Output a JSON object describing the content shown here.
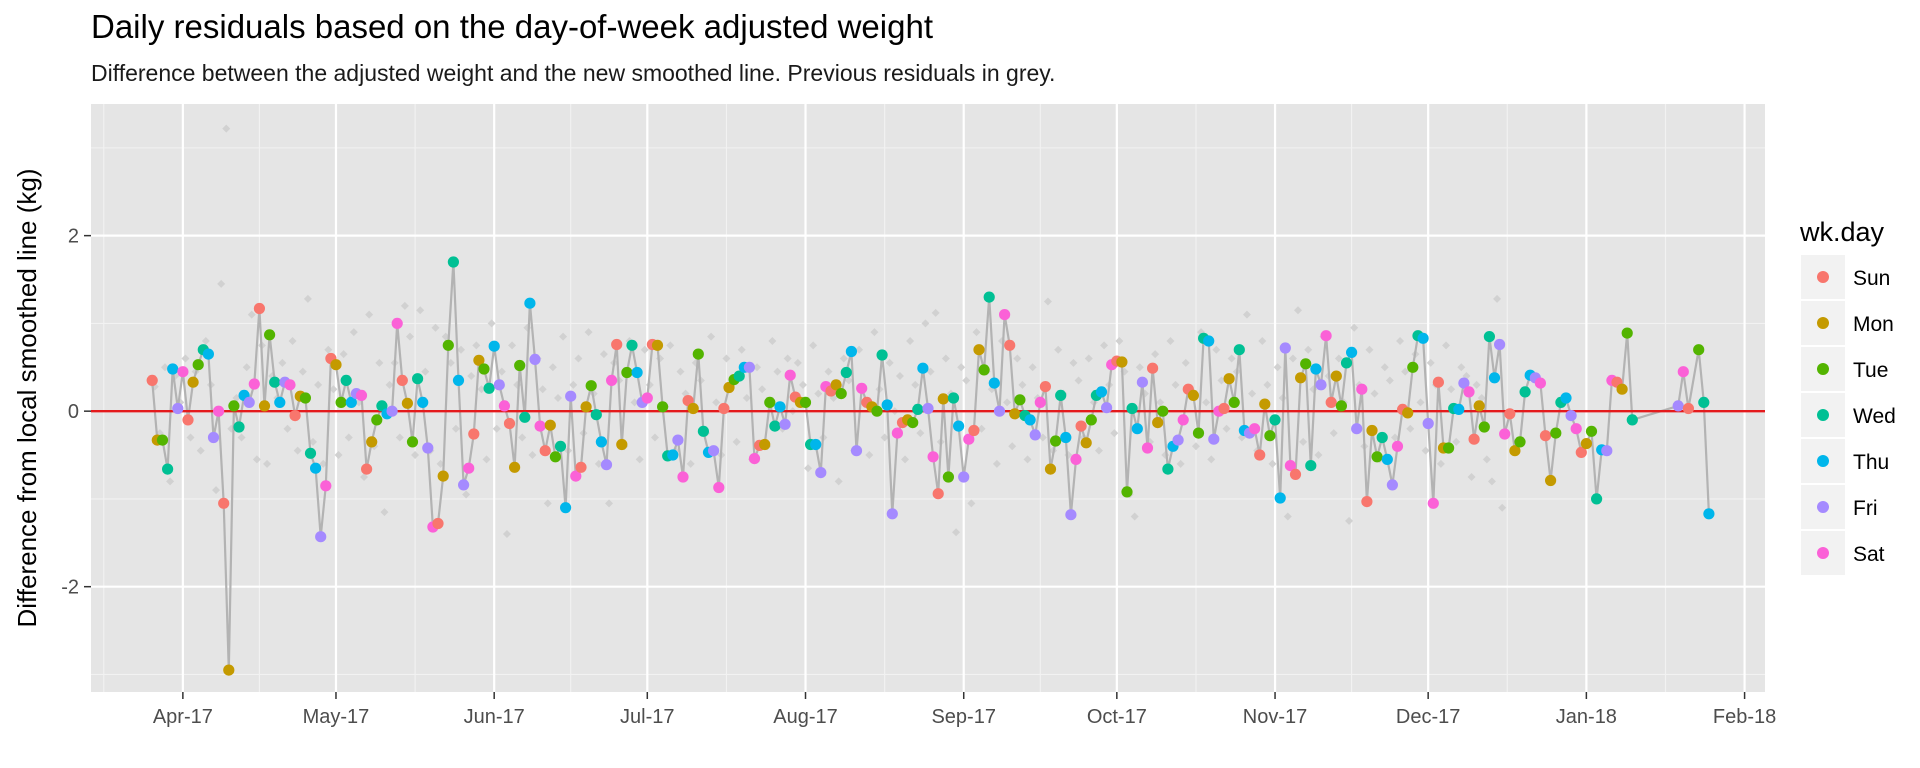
{
  "chart_data": {
    "type": "scatter",
    "title": "Daily residuals based on the day-of-week adjusted weight",
    "subtitle": "Difference between the adjusted weight and the new smoothed line. Previous residuals in grey.",
    "xlabel": "",
    "ylabel": "Difference from local smoothed line (kg)",
    "x_range": [
      "2017-03-14",
      "2018-02-05"
    ],
    "ylim": [
      -3.2,
      3.5
    ],
    "x_ticks": [
      "Apr-17",
      "May-17",
      "Jun-17",
      "Jul-17",
      "Aug-17",
      "Sep-17",
      "Oct-17",
      "Nov-17",
      "Dec-17",
      "Jan-18",
      "Feb-18"
    ],
    "x_tick_dates": [
      "2017-04-01",
      "2017-05-01",
      "2017-06-01",
      "2017-07-01",
      "2017-08-01",
      "2017-09-01",
      "2017-10-01",
      "2017-11-01",
      "2017-12-01",
      "2018-01-01",
      "2018-02-01"
    ],
    "y_ticks": [
      -2,
      0,
      2
    ],
    "y_tick_labels": [
      "-2",
      "0",
      "2"
    ],
    "reference_line": {
      "y": 0,
      "color": "#e41a1c"
    },
    "grid": true,
    "background": "#e5e5e5",
    "connecting_line_color": "#b3b3b3",
    "previous_residuals_color": "#d1d1d1",
    "legend": {
      "title": "wk.day",
      "position": "right",
      "entries": [
        {
          "label": "Sun",
          "color": "#F8766D"
        },
        {
          "label": "Mon",
          "color": "#C49A00"
        },
        {
          "label": "Tue",
          "color": "#53B400"
        },
        {
          "label": "Wed",
          "color": "#00C094"
        },
        {
          "label": "Thu",
          "color": "#00B6EB"
        },
        {
          "label": "Fri",
          "color": "#A58AFF"
        },
        {
          "label": "Sat",
          "color": "#FB61D7"
        }
      ]
    },
    "start_date": "2017-03-26",
    "residuals": [
      0.35,
      -0.33,
      -0.33,
      -0.66,
      0.48,
      0.03,
      0.45,
      -0.1,
      0.33,
      0.53,
      0.7,
      0.65,
      -0.3,
      0.0,
      -1.05,
      -2.95,
      0.06,
      -0.18,
      0.18,
      0.1,
      0.31,
      1.17,
      0.06,
      0.87,
      0.33,
      0.1,
      0.33,
      0.3,
      -0.05,
      0.17,
      0.15,
      -0.48,
      -0.65,
      -1.43,
      -0.85,
      0.6,
      0.53,
      0.1,
      0.35,
      0.1,
      0.2,
      0.18,
      -0.66,
      -0.35,
      -0.1,
      0.06,
      -0.03,
      0.0,
      1.0,
      0.35,
      0.09,
      -0.35,
      0.37,
      0.1,
      -0.42,
      -1.32,
      -1.28,
      -0.74,
      0.75,
      1.7,
      0.35,
      -0.84,
      -0.65,
      -0.26,
      0.58,
      0.48,
      0.26,
      0.74,
      0.3,
      0.06,
      -0.14,
      -0.64,
      0.52,
      -0.07,
      1.23,
      0.59,
      -0.17,
      -0.45,
      -0.16,
      -0.52,
      -0.4,
      -1.1,
      0.17,
      -0.74,
      -0.64,
      0.05,
      0.29,
      -0.04,
      -0.35,
      -0.61,
      0.35,
      0.76,
      -0.38,
      0.44,
      0.75,
      0.44,
      0.1,
      0.15,
      0.76,
      0.75,
      0.05,
      -0.51,
      -0.5,
      -0.33,
      -0.75,
      0.12,
      0.03,
      0.65,
      -0.23,
      -0.47,
      -0.45,
      -0.87,
      0.03,
      0.27,
      0.36,
      0.4,
      0.5,
      0.5,
      -0.54,
      -0.39,
      -0.38,
      0.1,
      -0.17,
      0.05,
      -0.15,
      0.41,
      0.16,
      0.1,
      0.1,
      -0.38,
      -0.38,
      -0.7,
      0.28,
      0.23,
      0.3,
      0.2,
      0.44,
      0.68,
      -0.45,
      0.26,
      0.1,
      0.05,
      0.0,
      0.64,
      0.07,
      -1.17,
      -0.25,
      -0.13,
      -0.1,
      -0.13,
      0.02,
      0.49,
      0.03,
      -0.52,
      -0.94,
      0.14,
      -0.75,
      0.15,
      -0.17,
      -0.75,
      -0.32,
      -0.22,
      0.7,
      0.47,
      1.3,
      0.32,
      0.0,
      1.1,
      0.75,
      -0.03,
      0.13,
      -0.05,
      -0.1,
      -0.27,
      0.1,
      0.28,
      -0.66,
      -0.34,
      0.18,
      -0.3,
      -1.18,
      -0.55,
      -0.17,
      -0.36,
      -0.1,
      0.18,
      0.22,
      0.04,
      0.53,
      0.57,
      0.56,
      -0.92,
      0.03,
      -0.2,
      0.33,
      -0.42,
      0.49,
      -0.13,
      0.0,
      -0.66,
      -0.4,
      -0.33,
      -0.1,
      0.25,
      0.18,
      -0.25,
      0.83,
      0.8,
      -0.32,
      0.0,
      0.03,
      0.37,
      0.1,
      0.7,
      -0.22,
      -0.25,
      -0.2,
      -0.5,
      0.08,
      -0.28,
      -0.1,
      -0.99,
      0.72,
      -0.62,
      -0.72,
      0.38,
      0.54,
      -0.62,
      0.48,
      0.3,
      0.86,
      0.1,
      0.4,
      0.06,
      0.55,
      0.67,
      -0.2,
      0.25,
      -1.03,
      -0.22,
      -0.52,
      -0.3,
      -0.55,
      -0.84,
      -0.4,
      0.02,
      -0.02,
      0.5,
      0.86,
      0.83,
      -0.14,
      -1.05,
      0.33,
      -0.42,
      -0.42,
      0.03,
      0.02,
      0.32,
      0.22,
      -0.32,
      0.06,
      -0.18,
      0.85,
      0.38,
      0.76,
      -0.26,
      -0.03,
      -0.45,
      -0.35,
      0.22,
      0.41,
      0.38,
      0.32,
      -0.28,
      -0.79,
      -0.25,
      0.1,
      0.15,
      -0.05,
      -0.2,
      -0.47,
      -0.37,
      -0.23,
      -1.0,
      -0.44,
      -0.45,
      0.35,
      0.33,
      0.25,
      0.89,
      -0.1
    ],
    "residuals_tail": [
      {
        "date": "2018-01-19",
        "y": 0.06
      },
      {
        "date": "2018-01-20",
        "y": 0.45
      },
      {
        "date": "2018-01-21",
        "y": 0.03
      },
      {
        "date": "2018-01-23",
        "y": 0.7
      },
      {
        "date": "2018-01-24",
        "y": 0.1
      },
      {
        "date": "2018-01-25",
        "y": -1.17
      }
    ],
    "previous_residuals": [
      0.28,
      -0.25,
      0.5,
      -0.8,
      0.4,
      0.1,
      0.6,
      -0.3,
      0.45,
      -0.45,
      0.8,
      0.3,
      -0.9,
      1.45,
      3.22,
      -0.2,
      0.15,
      -0.3,
      0.5,
      1.1,
      -0.55,
      0.75,
      -0.6,
      0.4,
      0.15,
      0.55,
      -0.2,
      0.8,
      -0.45,
      0.45,
      1.28,
      -0.35,
      0.3,
      -0.6,
      0.7,
      0.25,
      -0.5,
      0.65,
      -0.3,
      0.9,
      0.1,
      -0.75,
      1.1,
      -0.4,
      0.55,
      -1.15,
      0.3,
      0.55,
      -0.3,
      1.2,
      0.85,
      -0.5,
      1.15,
      0.45,
      -0.45,
      0.95,
      -0.6,
      0.85,
      0.55,
      -0.2,
      0.7,
      -0.95,
      0.4,
      0.75,
      0.25,
      -0.55,
      1.0,
      -0.2,
      0.45,
      -1.4,
      0.75,
      0.3,
      -0.3,
      0.95,
      -0.5,
      0.6,
      0.25,
      -1.05,
      0.5,
      0.15,
      0.85,
      -0.45,
      0.3,
      0.6,
      -0.25,
      0.9,
      0.2,
      -0.6,
      0.65,
      -1.05,
      0.55,
      0.35,
      -0.4,
      0.8,
      0.1,
      -0.55,
      0.7,
      0.3,
      -0.3,
      0.6,
      0.05,
      0.75,
      -0.45,
      0.45,
      0.2,
      -0.6,
      0.55,
      0.35,
      -0.25,
      0.85,
      0.1,
      -0.5,
      0.6,
      0.3,
      -0.35,
      0.7,
      0.15,
      -0.55,
      0.5,
      0.25,
      -0.4,
      0.8,
      0.45,
      -0.2,
      0.6,
      0.0,
      0.55,
      0.3,
      -0.65,
      0.75,
      0.2,
      -0.3,
      0.45,
      0.15,
      -0.8,
      0.6,
      0.35,
      -0.45,
      0.7,
      0.1,
      -0.5,
      0.9,
      0.25,
      -0.3,
      0.55,
      0.0,
      0.4,
      -0.55,
      0.8,
      0.3,
      -0.25,
      1.0,
      0.45,
      1.12,
      -0.35,
      0.6,
      0.2,
      -1.38,
      0.5,
      0.35,
      -1.05,
      0.9,
      -0.2,
      0.45,
      0.25,
      -0.6,
      0.8,
      0.1,
      -0.4,
      0.6,
      0.3,
      -0.55,
      0.5,
      0.15,
      -0.3,
      1.25,
      -0.45,
      0.7,
      0.2,
      -0.5,
      0.55,
      0.35,
      -0.3,
      0.6,
      0.1,
      -0.45,
      0.75,
      0.3,
      -0.25,
      0.8,
      0.45,
      -0.95,
      -1.2,
      0.5,
      0.2,
      -0.35,
      0.65,
      0.1,
      -0.5,
      0.8,
      0.3,
      -0.6,
      0.55,
      0.25,
      -0.4,
      0.9,
      0.1,
      -0.55,
      0.7,
      0.35,
      -0.2,
      0.6,
      0.45,
      -0.3,
      1.1,
      0.2,
      -0.45,
      0.8,
      0.3,
      -0.6,
      0.5,
      0.15,
      -1.2,
      0.6,
      1.15,
      -0.35,
      0.7,
      0.25,
      -0.5,
      0.85,
      0.4,
      -0.25,
      0.6,
      0.1,
      -1.25,
      0.95,
      0.3,
      -0.4,
      0.7,
      0.2,
      -0.55,
      0.5,
      0.35,
      -0.3,
      0.8,
      0.45,
      -0.2,
      0.65,
      0.1,
      -0.45,
      0.55,
      0.3,
      -0.6,
      0.75,
      0.25,
      -0.35,
      0.5,
      0.4,
      -0.75,
      0.3,
      0.15,
      -0.55,
      -0.8,
      1.28,
      -1.1
    ]
  }
}
